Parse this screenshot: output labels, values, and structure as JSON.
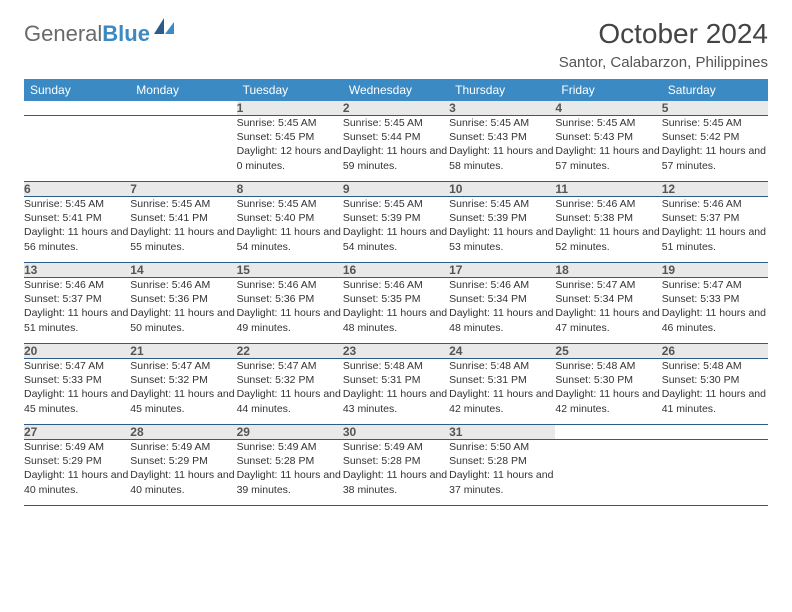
{
  "brand": {
    "part1": "General",
    "part2": "Blue"
  },
  "title": "October 2024",
  "location": "Santor, Calabarzon, Philippines",
  "colors": {
    "header_bg": "#3b8ac4",
    "header_text": "#ffffff",
    "daynum_bg": "#e9e9e9",
    "rule": "#2d5b8a",
    "body_text": "#333333"
  },
  "day_headers": [
    "Sunday",
    "Monday",
    "Tuesday",
    "Wednesday",
    "Thursday",
    "Friday",
    "Saturday"
  ],
  "weeks": [
    {
      "nums": [
        "",
        "",
        "1",
        "2",
        "3",
        "4",
        "5"
      ],
      "cells": [
        null,
        null,
        {
          "sr": "Sunrise: 5:45 AM",
          "ss": "Sunset: 5:45 PM",
          "dl": "Daylight: 12 hours and 0 minutes."
        },
        {
          "sr": "Sunrise: 5:45 AM",
          "ss": "Sunset: 5:44 PM",
          "dl": "Daylight: 11 hours and 59 minutes."
        },
        {
          "sr": "Sunrise: 5:45 AM",
          "ss": "Sunset: 5:43 PM",
          "dl": "Daylight: 11 hours and 58 minutes."
        },
        {
          "sr": "Sunrise: 5:45 AM",
          "ss": "Sunset: 5:43 PM",
          "dl": "Daylight: 11 hours and 57 minutes."
        },
        {
          "sr": "Sunrise: 5:45 AM",
          "ss": "Sunset: 5:42 PM",
          "dl": "Daylight: 11 hours and 57 minutes."
        }
      ]
    },
    {
      "nums": [
        "6",
        "7",
        "8",
        "9",
        "10",
        "11",
        "12"
      ],
      "cells": [
        {
          "sr": "Sunrise: 5:45 AM",
          "ss": "Sunset: 5:41 PM",
          "dl": "Daylight: 11 hours and 56 minutes."
        },
        {
          "sr": "Sunrise: 5:45 AM",
          "ss": "Sunset: 5:41 PM",
          "dl": "Daylight: 11 hours and 55 minutes."
        },
        {
          "sr": "Sunrise: 5:45 AM",
          "ss": "Sunset: 5:40 PM",
          "dl": "Daylight: 11 hours and 54 minutes."
        },
        {
          "sr": "Sunrise: 5:45 AM",
          "ss": "Sunset: 5:39 PM",
          "dl": "Daylight: 11 hours and 54 minutes."
        },
        {
          "sr": "Sunrise: 5:45 AM",
          "ss": "Sunset: 5:39 PM",
          "dl": "Daylight: 11 hours and 53 minutes."
        },
        {
          "sr": "Sunrise: 5:46 AM",
          "ss": "Sunset: 5:38 PM",
          "dl": "Daylight: 11 hours and 52 minutes."
        },
        {
          "sr": "Sunrise: 5:46 AM",
          "ss": "Sunset: 5:37 PM",
          "dl": "Daylight: 11 hours and 51 minutes."
        }
      ]
    },
    {
      "nums": [
        "13",
        "14",
        "15",
        "16",
        "17",
        "18",
        "19"
      ],
      "cells": [
        {
          "sr": "Sunrise: 5:46 AM",
          "ss": "Sunset: 5:37 PM",
          "dl": "Daylight: 11 hours and 51 minutes."
        },
        {
          "sr": "Sunrise: 5:46 AM",
          "ss": "Sunset: 5:36 PM",
          "dl": "Daylight: 11 hours and 50 minutes."
        },
        {
          "sr": "Sunrise: 5:46 AM",
          "ss": "Sunset: 5:36 PM",
          "dl": "Daylight: 11 hours and 49 minutes."
        },
        {
          "sr": "Sunrise: 5:46 AM",
          "ss": "Sunset: 5:35 PM",
          "dl": "Daylight: 11 hours and 48 minutes."
        },
        {
          "sr": "Sunrise: 5:46 AM",
          "ss": "Sunset: 5:34 PM",
          "dl": "Daylight: 11 hours and 48 minutes."
        },
        {
          "sr": "Sunrise: 5:47 AM",
          "ss": "Sunset: 5:34 PM",
          "dl": "Daylight: 11 hours and 47 minutes."
        },
        {
          "sr": "Sunrise: 5:47 AM",
          "ss": "Sunset: 5:33 PM",
          "dl": "Daylight: 11 hours and 46 minutes."
        }
      ]
    },
    {
      "nums": [
        "20",
        "21",
        "22",
        "23",
        "24",
        "25",
        "26"
      ],
      "cells": [
        {
          "sr": "Sunrise: 5:47 AM",
          "ss": "Sunset: 5:33 PM",
          "dl": "Daylight: 11 hours and 45 minutes."
        },
        {
          "sr": "Sunrise: 5:47 AM",
          "ss": "Sunset: 5:32 PM",
          "dl": "Daylight: 11 hours and 45 minutes."
        },
        {
          "sr": "Sunrise: 5:47 AM",
          "ss": "Sunset: 5:32 PM",
          "dl": "Daylight: 11 hours and 44 minutes."
        },
        {
          "sr": "Sunrise: 5:48 AM",
          "ss": "Sunset: 5:31 PM",
          "dl": "Daylight: 11 hours and 43 minutes."
        },
        {
          "sr": "Sunrise: 5:48 AM",
          "ss": "Sunset: 5:31 PM",
          "dl": "Daylight: 11 hours and 42 minutes."
        },
        {
          "sr": "Sunrise: 5:48 AM",
          "ss": "Sunset: 5:30 PM",
          "dl": "Daylight: 11 hours and 42 minutes."
        },
        {
          "sr": "Sunrise: 5:48 AM",
          "ss": "Sunset: 5:30 PM",
          "dl": "Daylight: 11 hours and 41 minutes."
        }
      ]
    },
    {
      "nums": [
        "27",
        "28",
        "29",
        "30",
        "31",
        "",
        ""
      ],
      "cells": [
        {
          "sr": "Sunrise: 5:49 AM",
          "ss": "Sunset: 5:29 PM",
          "dl": "Daylight: 11 hours and 40 minutes."
        },
        {
          "sr": "Sunrise: 5:49 AM",
          "ss": "Sunset: 5:29 PM",
          "dl": "Daylight: 11 hours and 40 minutes."
        },
        {
          "sr": "Sunrise: 5:49 AM",
          "ss": "Sunset: 5:28 PM",
          "dl": "Daylight: 11 hours and 39 minutes."
        },
        {
          "sr": "Sunrise: 5:49 AM",
          "ss": "Sunset: 5:28 PM",
          "dl": "Daylight: 11 hours and 38 minutes."
        },
        {
          "sr": "Sunrise: 5:50 AM",
          "ss": "Sunset: 5:28 PM",
          "dl": "Daylight: 11 hours and 37 minutes."
        },
        null,
        null
      ]
    }
  ]
}
